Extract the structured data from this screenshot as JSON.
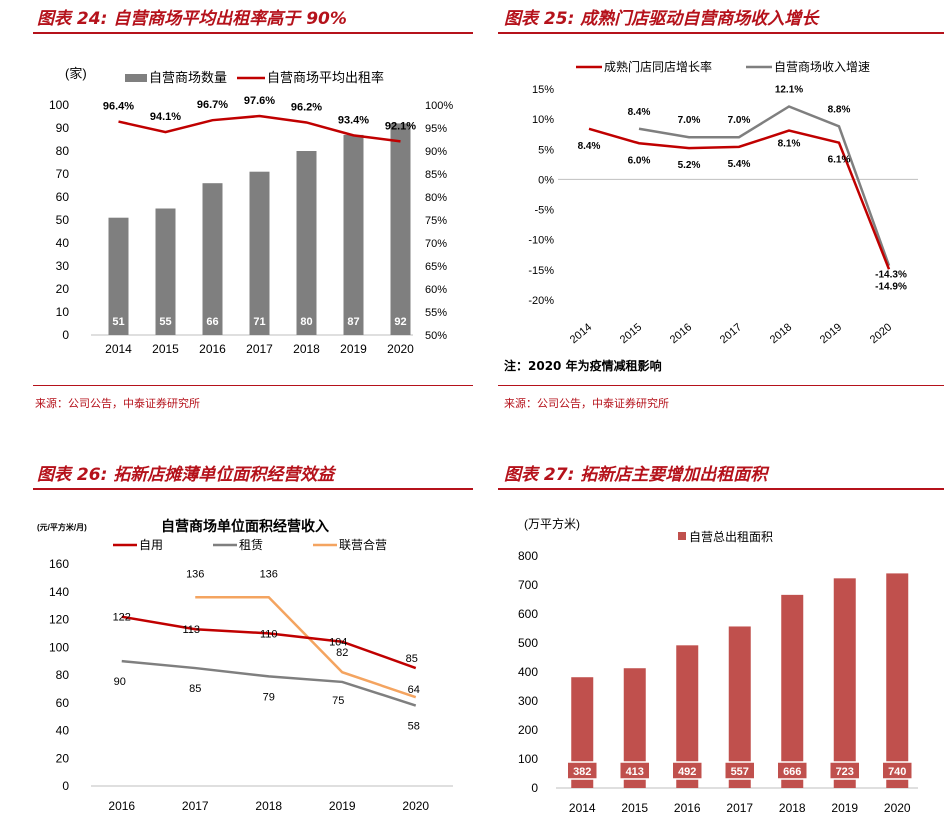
{
  "colors": {
    "red": "#c00000",
    "gray": "#7f7f7f",
    "orange": "#f4a460",
    "brick": "#c0504d",
    "title": "#b5121b"
  },
  "panels": {
    "p24": {
      "title": "图表 24:  自营商场平均出租率高于 90%",
      "source": "来源：公司公告，中泰证券研究所"
    },
    "p25": {
      "title": "图表 25:  成熟门店驱动自营商场收入增长",
      "source": "来源：公司公告，中泰证券研究所",
      "note": "注：2020 年为疫情减租影响"
    },
    "p26": {
      "title": "图表 26:  拓新店摊薄单位面积经营效益"
    },
    "p27": {
      "title": "图表 27:  拓新店主要增加出租面积"
    }
  },
  "chart_data": [
    {
      "id": "c24",
      "type": "bar",
      "categories": [
        "2014",
        "2015",
        "2016",
        "2017",
        "2018",
        "2019",
        "2020"
      ],
      "ylabel": "(家)",
      "ylim": [
        0,
        100
      ],
      "yticks": [
        0,
        10,
        20,
        30,
        40,
        50,
        60,
        70,
        80,
        90,
        100
      ],
      "y2lim": [
        50,
        100
      ],
      "y2ticks": [
        "50%",
        "55%",
        "60%",
        "65%",
        "70%",
        "75%",
        "80%",
        "85%",
        "90%",
        "95%",
        "100%"
      ],
      "series": [
        {
          "name": "自营商场数量",
          "type": "bar",
          "axis": "left",
          "values": [
            51,
            55,
            66,
            71,
            80,
            87,
            92
          ],
          "labels": [
            "51",
            "55",
            "66",
            "71",
            "80",
            "87",
            "92"
          ]
        },
        {
          "name": "自营商场平均出租率",
          "type": "line",
          "axis": "right",
          "values": [
            96.4,
            94.1,
            96.7,
            97.6,
            96.2,
            93.4,
            92.1
          ],
          "labels": [
            "96.4%",
            "94.1%",
            "96.7%",
            "97.6%",
            "96.2%",
            "93.4%",
            "92.1%"
          ]
        }
      ]
    },
    {
      "id": "c25",
      "type": "line",
      "categories": [
        "2014",
        "2015",
        "2016",
        "2017",
        "2018",
        "2019",
        "2020"
      ],
      "ylim": [
        -20,
        15
      ],
      "yticks": [
        "15%",
        "10%",
        "5%",
        "0%",
        "-5%",
        "-10%",
        "-15%",
        "-20%"
      ],
      "series": [
        {
          "name": "成熟门店同店增长率",
          "values": [
            8.4,
            6.0,
            5.2,
            5.4,
            8.1,
            6.1,
            -14.9
          ],
          "labels": [
            "8.4%",
            "6.0%",
            "5.2%",
            "5.4%",
            "8.1%",
            "6.1%",
            "-14.9%"
          ]
        },
        {
          "name": "自营商场收入增速",
          "values": [
            null,
            8.4,
            7.0,
            7.0,
            12.1,
            8.8,
            -14.3
          ],
          "labels": [
            "",
            "8.4%",
            "7.0%",
            "7.0%",
            "12.1%",
            "8.8%",
            "-14.3%"
          ]
        }
      ]
    },
    {
      "id": "c26",
      "type": "line",
      "title": "自营商场单位面积经营收入",
      "ylabel": "(元/平方米/月)",
      "categories": [
        "2016",
        "2017",
        "2018",
        "2019",
        "2020"
      ],
      "ylim": [
        0,
        160
      ],
      "yticks": [
        0,
        20,
        40,
        60,
        80,
        100,
        120,
        140,
        160
      ],
      "series": [
        {
          "name": "自用",
          "values": [
            122,
            113,
            110,
            104,
            85
          ],
          "labels": [
            "122",
            "113",
            "110",
            "104",
            "85"
          ]
        },
        {
          "name": "租赁",
          "values": [
            90,
            85,
            79,
            75,
            58
          ],
          "labels": [
            "90",
            "85",
            "79",
            "75",
            "58"
          ]
        },
        {
          "name": "联营合营",
          "values": [
            null,
            136,
            136,
            82,
            64
          ],
          "labels": [
            "",
            "136",
            "136",
            "82",
            "64"
          ]
        }
      ]
    },
    {
      "id": "c27",
      "type": "bar",
      "ylabel": "(万平方米)",
      "categories": [
        "2014",
        "2015",
        "2016",
        "2017",
        "2018",
        "2019",
        "2020"
      ],
      "ylim": [
        0,
        800
      ],
      "yticks": [
        0,
        100,
        200,
        300,
        400,
        500,
        600,
        700,
        800
      ],
      "series": [
        {
          "name": "自营总出租面积",
          "values": [
            382,
            413,
            492,
            557,
            666,
            723,
            740
          ],
          "labels": [
            "382",
            "413",
            "492",
            "557",
            "666",
            "723",
            "740"
          ]
        }
      ]
    }
  ]
}
